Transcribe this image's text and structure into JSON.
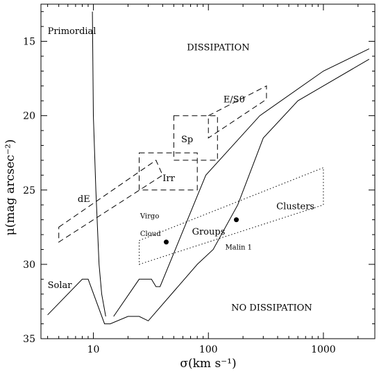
{
  "chart_data": {
    "type": "line",
    "xlabel": "σ(km s⁻¹)",
    "ylabel": "μ(mag arcsec⁻²)",
    "x_scale": "log",
    "xlim": [
      3.5,
      2800
    ],
    "ylim": [
      12.5,
      35
    ],
    "y_inverted": true,
    "x_ticks": [
      10,
      100,
      1000
    ],
    "x_tick_labels": [
      "10",
      "100",
      "1000"
    ],
    "y_ticks": [
      15,
      20,
      25,
      30,
      35
    ],
    "y_tick_labels": [
      "15",
      "20",
      "25",
      "30",
      "35"
    ],
    "grid": false,
    "curves": [
      {
        "name": "Primordial",
        "style": "solid",
        "points": [
          [
            9.8,
            13.0
          ],
          [
            10.0,
            20.0
          ],
          [
            10.5,
            25.0
          ],
          [
            11.2,
            30.0
          ],
          [
            11.8,
            32.0
          ],
          [
            12.8,
            33.5
          ]
        ]
      },
      {
        "name": "Solar",
        "style": "solid",
        "points": [
          [
            4.0,
            33.4
          ],
          [
            8.0,
            31.0
          ],
          [
            9.0,
            31.0
          ],
          [
            12.5,
            34.0
          ],
          [
            14.0,
            34.0
          ],
          [
            20.0,
            33.5
          ],
          [
            25.0,
            33.5
          ],
          [
            30.0,
            33.8
          ],
          [
            80.0,
            30.0
          ],
          [
            110.0,
            29.0
          ],
          [
            180.0,
            26.0
          ],
          [
            300.0,
            21.5
          ],
          [
            600.0,
            19.0
          ],
          [
            2500.0,
            16.2
          ]
        ]
      },
      {
        "name": "",
        "style": "solid",
        "points": [
          [
            15.0,
            33.5
          ],
          [
            25.0,
            31.0
          ],
          [
            32.0,
            31.0
          ],
          [
            35.0,
            31.5
          ],
          [
            38.0,
            31.5
          ],
          [
            95.0,
            24.0
          ],
          [
            280.0,
            20.0
          ],
          [
            1000.0,
            17.0
          ],
          [
            2500.0,
            15.5
          ]
        ]
      }
    ],
    "regions": [
      {
        "name": "dE",
        "style": "dashed",
        "corners": [
          [
            5.0,
            27.5
          ],
          [
            35.0,
            23.0
          ],
          [
            40.0,
            24.0
          ],
          [
            5.0,
            28.5
          ]
        ]
      },
      {
        "name": "Irr",
        "style": "dashed",
        "corners": [
          [
            25.0,
            22.5
          ],
          [
            80.0,
            22.5
          ],
          [
            80.0,
            25.0
          ],
          [
            25.0,
            25.0
          ]
        ]
      },
      {
        "name": "Sp",
        "style": "dashed",
        "corners": [
          [
            50.0,
            20.0
          ],
          [
            120.0,
            20.0
          ],
          [
            120.0,
            23.0
          ],
          [
            50.0,
            23.0
          ]
        ]
      },
      {
        "name": "E/S0",
        "style": "dashed",
        "corners": [
          [
            100.0,
            20.0
          ],
          [
            320.0,
            18.0
          ],
          [
            320.0,
            18.9
          ],
          [
            100.0,
            21.5
          ]
        ]
      },
      {
        "name": "Clusters",
        "style": "dotted",
        "corners": [
          [
            25.0,
            28.4
          ],
          [
            1000.0,
            23.5
          ],
          [
            1000.0,
            26.0
          ],
          [
            25.0,
            30.0
          ]
        ]
      }
    ],
    "points": [
      {
        "name": "Virgo Cloud",
        "x": 43,
        "y": 28.5
      },
      {
        "name": "Malin 1",
        "x": 175,
        "y": 27.0
      }
    ],
    "annotations": [
      {
        "text": "Primordial",
        "x": 4.0,
        "y": 14.5,
        "size": "region"
      },
      {
        "text": "DISSIPATION",
        "x": 65,
        "y": 15.6,
        "size": "big"
      },
      {
        "text": "E/S0",
        "x": 135,
        "y": 19.1,
        "size": "region"
      },
      {
        "text": "Sp",
        "x": 58,
        "y": 21.8,
        "size": "region"
      },
      {
        "text": "Irr",
        "x": 40,
        "y": 24.4,
        "size": "region"
      },
      {
        "text": "dE",
        "x": 7.3,
        "y": 25.8,
        "size": "region"
      },
      {
        "text": "Virgo",
        "x": 25.5,
        "y": 26.9,
        "size": "small"
      },
      {
        "text": "Cloud",
        "x": 25.5,
        "y": 28.1,
        "size": "small"
      },
      {
        "text": "Groups",
        "x": 72,
        "y": 28.0,
        "size": "region"
      },
      {
        "text": "Clusters",
        "x": 390,
        "y": 26.3,
        "size": "region"
      },
      {
        "text": "Malin 1",
        "x": 140,
        "y": 29.0,
        "size": "small"
      },
      {
        "text": "Solar",
        "x": 4.0,
        "y": 31.6,
        "size": "region"
      },
      {
        "text": "NO DISSIPATION",
        "x": 158,
        "y": 33.1,
        "size": "big"
      }
    ]
  }
}
